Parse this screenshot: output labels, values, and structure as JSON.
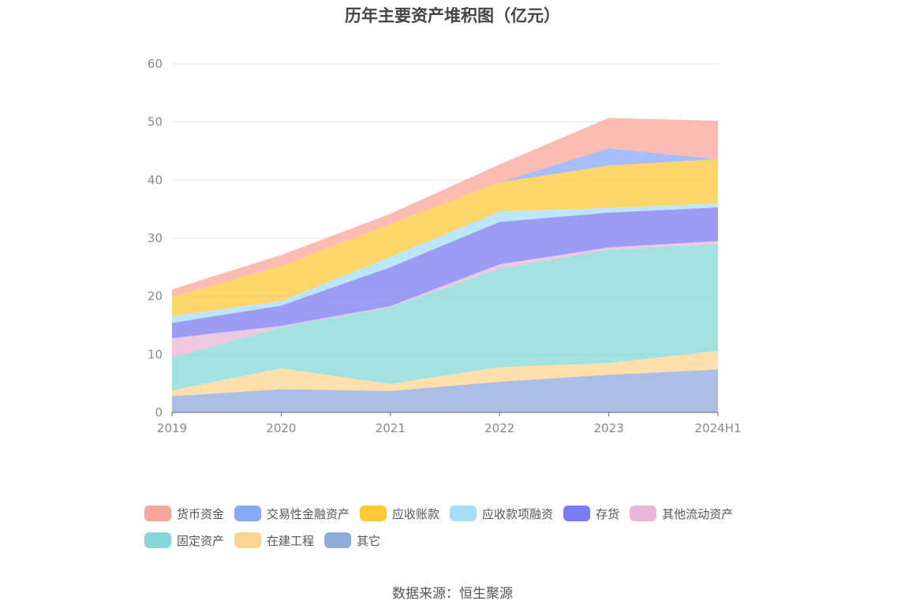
{
  "chart_data": {
    "type": "area",
    "stacked": true,
    "title": "历年主要资产堆积图（亿元）",
    "categories": [
      "2019",
      "2020",
      "2021",
      "2022",
      "2023",
      "2024H1"
    ],
    "ylim": [
      0,
      60
    ],
    "yticks": [
      0,
      10,
      20,
      30,
      40,
      50,
      60
    ],
    "grid": true,
    "legend_position": "bottom",
    "series": [
      {
        "name": "其它",
        "color": "#8faadc",
        "values": [
          2.8,
          4.0,
          3.7,
          5.3,
          6.5,
          7.4
        ]
      },
      {
        "name": "在建工程",
        "color": "#ffd591",
        "values": [
          1.0,
          3.6,
          1.2,
          2.5,
          2.0,
          3.2
        ]
      },
      {
        "name": "固定资产",
        "color": "#86d8d8",
        "values": [
          5.6,
          7.1,
          13.2,
          17.0,
          19.5,
          18.4
        ]
      },
      {
        "name": "其他流动资产",
        "color": "#e9b6d8",
        "values": [
          3.4,
          0.2,
          0.2,
          0.7,
          0.4,
          0.5
        ]
      },
      {
        "name": "存货",
        "color": "#7b7bf2",
        "values": [
          2.6,
          3.5,
          6.7,
          7.3,
          6.0,
          5.8
        ]
      },
      {
        "name": "应收款项融资",
        "color": "#a6defa",
        "values": [
          1.2,
          0.8,
          1.8,
          1.8,
          0.8,
          0.7
        ]
      },
      {
        "name": "应收账款",
        "color": "#ffc837",
        "values": [
          3.3,
          6.0,
          5.7,
          5.0,
          7.3,
          7.6
        ]
      },
      {
        "name": "交易性金融资产",
        "color": "#8aa8fa",
        "values": [
          0.0,
          0.0,
          0.0,
          0.0,
          3.0,
          0.0
        ]
      },
      {
        "name": "货币资金",
        "color": "#fba59b",
        "values": [
          1.3,
          1.9,
          1.7,
          3.1,
          5.2,
          6.6
        ]
      }
    ],
    "legend_order": [
      "货币资金",
      "交易性金融资产",
      "应收账款",
      "应收款项融资",
      "存货",
      "其他流动资产",
      "固定资产",
      "在建工程",
      "其它"
    ]
  },
  "source": "数据来源：恒生聚源"
}
